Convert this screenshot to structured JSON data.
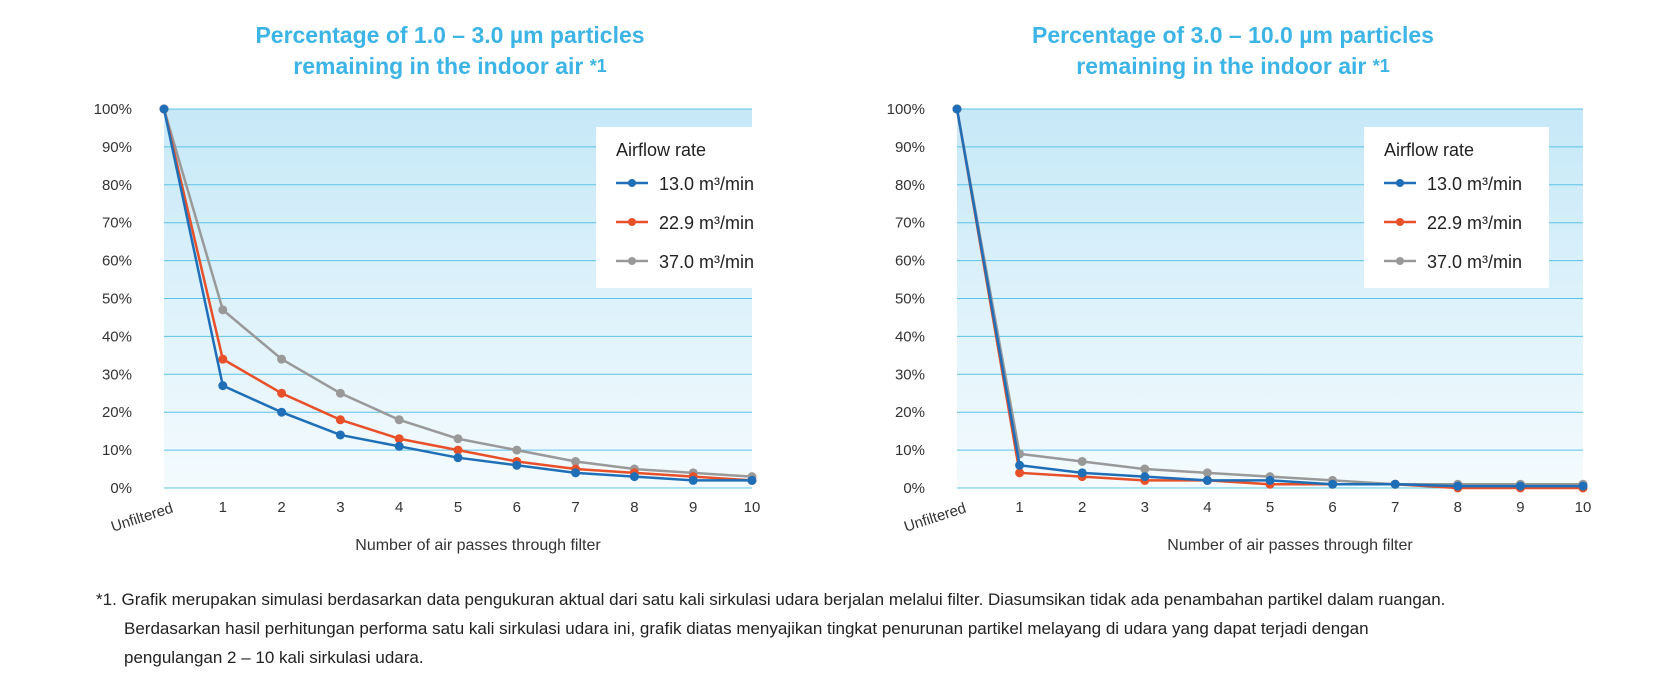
{
  "chart_data": [
    {
      "type": "line",
      "title_line1": "Percentage of 1.0 – 3.0 µm particles",
      "title_line2": "remaining in the indoor air",
      "title_mark": "*1",
      "categories": [
        "Unfiltered",
        "1",
        "2",
        "3",
        "4",
        "5",
        "6",
        "7",
        "8",
        "9",
        "10"
      ],
      "xlabel": "Number of air passes through filter",
      "ylabel": "",
      "ylim": [
        0,
        100
      ],
      "yticks": [
        "0%",
        "10%",
        "20%",
        "30%",
        "40%",
        "50%",
        "60%",
        "70%",
        "80%",
        "90%",
        "100%"
      ],
      "legend_title": "Airflow rate",
      "legend_position": "top-right",
      "series": [
        {
          "name": "13.0 m³/min",
          "color": "#1f6fb8",
          "values": [
            100,
            27,
            20,
            14,
            11,
            8,
            6,
            4,
            3,
            2,
            2
          ]
        },
        {
          "name": "22.9 m³/min",
          "color": "#e8502a",
          "values": [
            100,
            34,
            25,
            18,
            13,
            10,
            7,
            5,
            4,
            3,
            2
          ]
        },
        {
          "name": "37.0 m³/min",
          "color": "#999999",
          "values": [
            100,
            47,
            34,
            25,
            18,
            13,
            10,
            7,
            5,
            4,
            3
          ]
        }
      ]
    },
    {
      "type": "line",
      "title_line1": "Percentage of 3.0 – 10.0 µm particles",
      "title_line2": "remaining in the indoor air",
      "title_mark": "*1",
      "categories": [
        "Unfiltered",
        "1",
        "2",
        "3",
        "4",
        "5",
        "6",
        "7",
        "8",
        "9",
        "10"
      ],
      "xlabel": "Number of air passes through filter",
      "ylabel": "",
      "ylim": [
        0,
        100
      ],
      "yticks": [
        "0%",
        "10%",
        "20%",
        "30%",
        "40%",
        "50%",
        "60%",
        "70%",
        "80%",
        "90%",
        "100%"
      ],
      "legend_title": "Airflow rate",
      "legend_position": "top-right",
      "series": [
        {
          "name": "13.0 m³/min",
          "color": "#1f6fb8",
          "values": [
            100,
            6,
            4,
            3,
            2,
            2,
            1,
            1,
            0.5,
            0.5,
            0.5
          ]
        },
        {
          "name": "22.9 m³/min",
          "color": "#e8502a",
          "values": [
            100,
            4,
            3,
            2,
            2,
            1,
            1,
            1,
            0,
            0,
            0
          ]
        },
        {
          "name": "37.0 m³/min",
          "color": "#999999",
          "values": [
            100,
            9,
            7,
            5,
            4,
            3,
            2,
            1,
            1,
            1,
            1
          ]
        }
      ]
    }
  ],
  "footnote": {
    "line1": "*1. Grafik merupakan simulasi berdasarkan data pengukuran aktual dari satu kali sirkulasi udara berjalan melalui filter. Diasumsikan tidak ada penambahan partikel dalam ruangan.",
    "line2": "Berdasarkan hasil perhitungan performa satu kali sirkulasi udara ini, grafik diatas menyajikan tingkat penurunan partikel melayang di udara yang dapat terjadi dengan",
    "line3": "pengulangan 2 – 10 kali sirkulasi udara."
  }
}
